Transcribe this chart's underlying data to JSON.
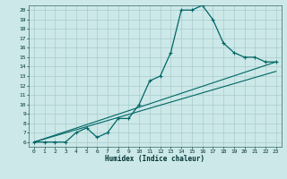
{
  "title": "",
  "xlabel": "Humidex (Indice chaleur)",
  "bg_color": "#cce8e8",
  "grid_color": "#aacccc",
  "line_color": "#006666",
  "xlim": [
    -0.5,
    23.5
  ],
  "ylim": [
    5.5,
    20.5
  ],
  "xticks": [
    0,
    1,
    2,
    3,
    4,
    5,
    6,
    7,
    8,
    9,
    10,
    11,
    12,
    13,
    14,
    15,
    16,
    17,
    18,
    19,
    20,
    21,
    22,
    23
  ],
  "yticks": [
    6,
    7,
    8,
    9,
    10,
    11,
    12,
    13,
    14,
    15,
    16,
    17,
    18,
    19,
    20
  ],
  "series": [
    [
      0,
      6
    ],
    [
      1,
      6
    ],
    [
      2,
      6
    ],
    [
      3,
      6
    ],
    [
      4,
      7
    ],
    [
      5,
      7.5
    ],
    [
      6,
      6.5
    ],
    [
      7,
      7
    ],
    [
      8,
      8.5
    ],
    [
      9,
      8.5
    ],
    [
      10,
      10
    ],
    [
      11,
      12.5
    ],
    [
      12,
      13
    ],
    [
      13,
      15.5
    ],
    [
      14,
      20
    ],
    [
      15,
      20
    ],
    [
      16,
      20.5
    ],
    [
      17,
      19
    ],
    [
      18,
      16.5
    ],
    [
      19,
      15.5
    ],
    [
      20,
      15
    ],
    [
      21,
      15
    ],
    [
      22,
      14.5
    ],
    [
      23,
      14.5
    ]
  ],
  "straight_lines": [
    [
      [
        0,
        6
      ],
      [
        23,
        14.5
      ]
    ],
    [
      [
        0,
        6
      ],
      [
        23,
        14.5
      ]
    ]
  ]
}
